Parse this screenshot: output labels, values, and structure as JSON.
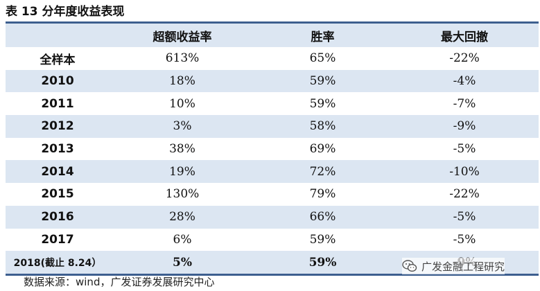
{
  "title": "表 13  分年度收益表现",
  "table": {
    "headers": [
      "",
      "超额收益率",
      "胜率",
      "最大回撤"
    ],
    "rows": [
      [
        "全样本",
        "613%",
        "65%",
        "-22%"
      ],
      [
        "2010",
        "18%",
        "59%",
        "-4%"
      ],
      [
        "2011",
        "10%",
        "59%",
        "-7%"
      ],
      [
        "2012",
        "3%",
        "58%",
        "-9%"
      ],
      [
        "2013",
        "38%",
        "69%",
        "-5%"
      ],
      [
        "2014",
        "19%",
        "72%",
        "-10%"
      ],
      [
        "2015",
        "130%",
        "79%",
        "-22%"
      ],
      [
        "2016",
        "28%",
        "66%",
        "-5%"
      ],
      [
        "2017",
        "6%",
        "59%",
        "-5%"
      ],
      [
        "2018(截止 8.24）",
        "5%",
        "59%",
        "-9%"
      ]
    ]
  },
  "source": "数据来源：wind，广发证券发展研究中心",
  "watermark": {
    "text": "广发金融工程研究",
    "icon": "wechat-icon",
    "color": "#555555"
  },
  "colors": {
    "header_bg": "#dce6f2",
    "alt_row_bg": "#dce6f2",
    "rule": "#3d5f8f"
  }
}
